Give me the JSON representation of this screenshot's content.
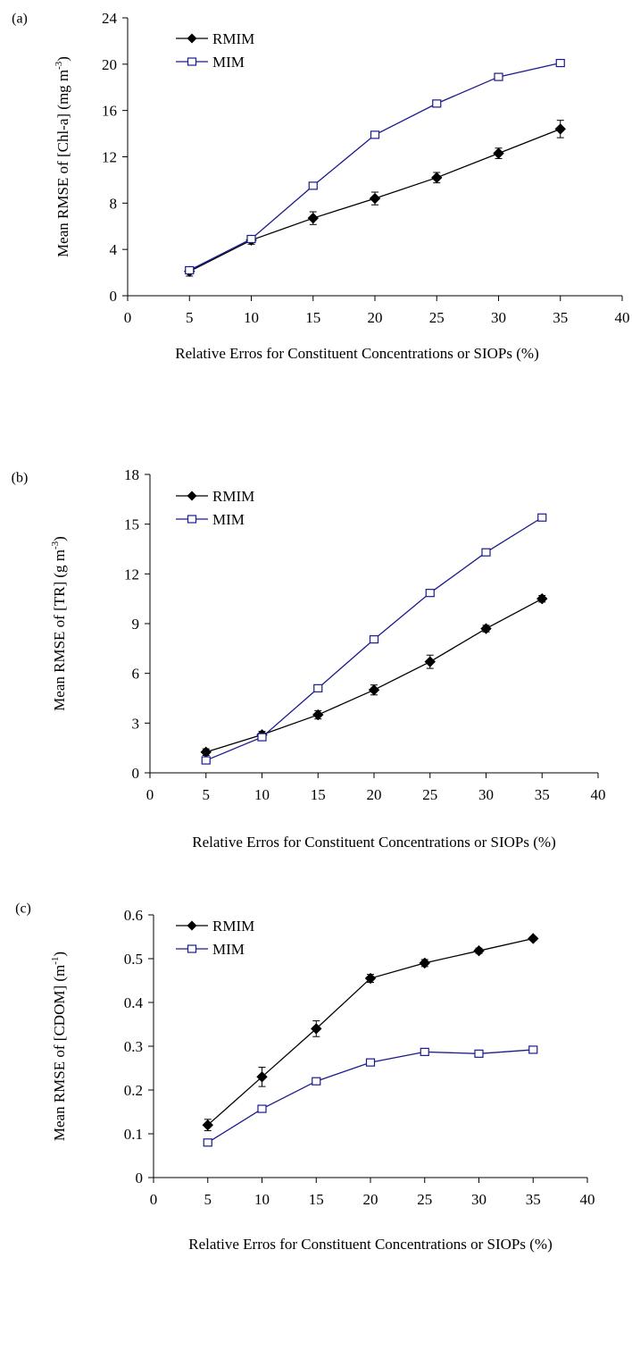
{
  "chart_data": [
    {
      "type": "line",
      "panel_label": "(a)",
      "ylabel": "Mean RMSE of [Chl-a] (mg m",
      "ylabel_sup": "-3",
      "ylabel_end": ")",
      "xlabel": "Relative Erros for Constituent Concentrations or SIOPs (%)",
      "xlim": [
        0,
        40
      ],
      "ylim": [
        0,
        24
      ],
      "xticks": [
        0,
        5,
        10,
        15,
        20,
        25,
        30,
        35,
        40
      ],
      "yticks": [
        0,
        4,
        8,
        12,
        16,
        20,
        24
      ],
      "legend_position": "top-left",
      "grid": false,
      "x": [
        5,
        10,
        15,
        20,
        25,
        30,
        35
      ],
      "series": [
        {
          "name": "RMIM",
          "marker": "filled-diamond",
          "color": "#000000",
          "values": [
            2.1,
            4.8,
            6.7,
            8.4,
            10.2,
            12.3,
            14.4
          ],
          "errors": [
            0.4,
            0.35,
            0.55,
            0.55,
            0.45,
            0.45,
            0.75
          ]
        },
        {
          "name": "MIM",
          "marker": "open-square",
          "color": "#1a1a8c",
          "values": [
            2.2,
            4.9,
            9.5,
            13.9,
            16.6,
            18.9,
            20.1
          ],
          "errors": [
            0.1,
            0.1,
            0.15,
            0.15,
            0.15,
            0.15,
            0.15
          ]
        }
      ]
    },
    {
      "type": "line",
      "panel_label": "(b)",
      "ylabel": "Mean RMSE of [TR] (g m",
      "ylabel_sup": "-3",
      "ylabel_end": ")",
      "xlabel": "Relative Erros for Constituent Concentrations or SIOPs (%)",
      "xlim": [
        0,
        40
      ],
      "ylim": [
        0,
        18
      ],
      "xticks": [
        0,
        5,
        10,
        15,
        20,
        25,
        30,
        35,
        40
      ],
      "yticks": [
        0,
        3,
        6,
        9,
        12,
        15,
        18
      ],
      "legend_position": "top-left",
      "grid": false,
      "x": [
        5,
        10,
        15,
        20,
        25,
        30,
        35
      ],
      "series": [
        {
          "name": "RMIM",
          "marker": "filled-diamond",
          "color": "#000000",
          "values": [
            1.25,
            2.3,
            3.5,
            5.0,
            6.7,
            8.7,
            10.5
          ],
          "errors": [
            0.2,
            0.2,
            0.25,
            0.3,
            0.4,
            0.2,
            0.2
          ]
        },
        {
          "name": "MIM",
          "marker": "open-square",
          "color": "#1a1a8c",
          "values": [
            0.75,
            2.15,
            5.1,
            8.05,
            10.85,
            13.3,
            15.4
          ],
          "errors": [
            0.1,
            0.1,
            0.1,
            0.1,
            0.1,
            0.1,
            0.1
          ]
        }
      ]
    },
    {
      "type": "line",
      "panel_label": "(c)",
      "ylabel": "Mean RMSE of [CDOM] (m",
      "ylabel_sup": "-1",
      "ylabel_end": ")",
      "xlabel": "Relative Erros for Constituent Concentrations or SIOPs (%)",
      "xlim": [
        0,
        40
      ],
      "ylim": [
        0,
        0.6
      ],
      "xticks": [
        0,
        5,
        10,
        15,
        20,
        25,
        30,
        35,
        40
      ],
      "yticks": [
        0,
        0.1,
        0.2,
        0.3,
        0.4,
        0.5,
        0.6
      ],
      "legend_position": "top-left",
      "grid": false,
      "x": [
        5,
        10,
        15,
        20,
        25,
        30,
        35
      ],
      "series": [
        {
          "name": "RMIM",
          "marker": "filled-diamond",
          "color": "#000000",
          "values": [
            0.12,
            0.23,
            0.34,
            0.455,
            0.49,
            0.518,
            0.546
          ],
          "errors": [
            0.013,
            0.022,
            0.018,
            0.009,
            0.008,
            0.006,
            0.004
          ]
        },
        {
          "name": "MIM",
          "marker": "open-square",
          "color": "#1a1a8c",
          "values": [
            0.08,
            0.157,
            0.22,
            0.263,
            0.287,
            0.283,
            0.292
          ],
          "errors": [
            0.003,
            0.003,
            0.003,
            0.003,
            0.003,
            0.003,
            0.003
          ]
        }
      ]
    }
  ]
}
